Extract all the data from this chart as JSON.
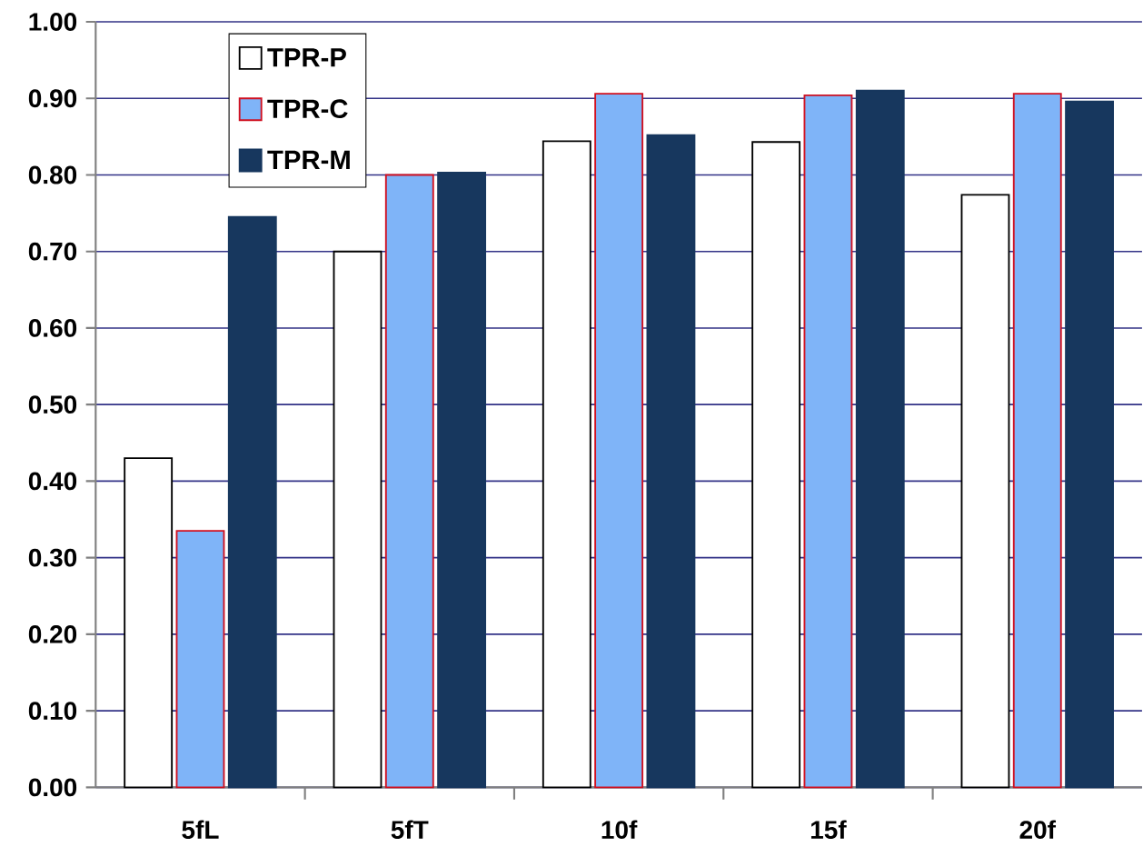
{
  "chart_data": {
    "type": "bar",
    "categories": [
      "5fL",
      "5fT",
      "10f",
      "15f",
      "20f"
    ],
    "series": [
      {
        "name": "TPR-P",
        "color": "#ffffff",
        "values": [
          0.43,
          0.7,
          0.844,
          0.843,
          0.774
        ]
      },
      {
        "name": "TPR-C",
        "color": "#7fb4f8",
        "values": [
          0.335,
          0.8,
          0.906,
          0.904,
          0.906
        ]
      },
      {
        "name": "TPR-M",
        "color": "#17375e",
        "values": [
          0.745,
          0.803,
          0.852,
          0.91,
          0.896
        ]
      }
    ],
    "ylim": [
      0,
      1
    ],
    "yticks": [
      {
        "value": 0,
        "label": "0.00"
      },
      {
        "value": 0.1,
        "label": "0.10"
      },
      {
        "value": 0.2,
        "label": "0.20"
      },
      {
        "value": 0.3,
        "label": "0.30"
      },
      {
        "value": 0.4,
        "label": "0.40"
      },
      {
        "value": 0.5,
        "label": "0.50"
      },
      {
        "value": 0.6,
        "label": "0.60"
      },
      {
        "value": 0.7,
        "label": "0.70"
      },
      {
        "value": 0.8,
        "label": "0.80"
      },
      {
        "value": 0.9,
        "label": "0.90"
      },
      {
        "value": 1,
        "label": "1.00"
      }
    ],
    "grid": "y",
    "legend": "top left"
  }
}
